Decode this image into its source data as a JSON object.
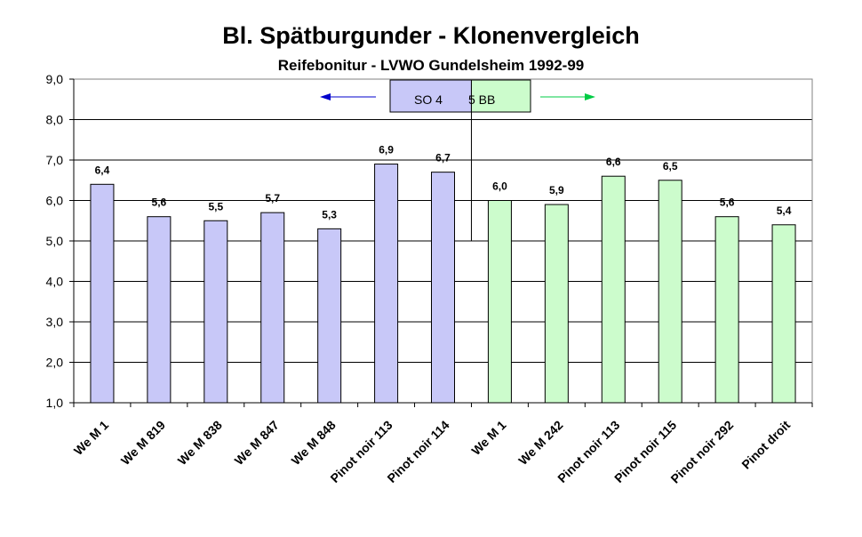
{
  "chart_data": {
    "type": "bar",
    "title": "Bl. Spätburgunder - Klonenvergleich",
    "subtitle": "Reifebonitur - LVWO Gundelsheim 1992-99",
    "ylim": [
      1.0,
      9.0
    ],
    "yticks": [
      "1,0",
      "2,0",
      "3,0",
      "4,0",
      "5,0",
      "6,0",
      "7,0",
      "8,0",
      "9,0"
    ],
    "grid": true,
    "series": [
      {
        "name": "SO 4",
        "color": "#c8c8f8",
        "categories": [
          "We M 1",
          "We M 819",
          "We M 838",
          "We M 847",
          "We M 848",
          "Pinot noir 113",
          "Pinot noir 114"
        ],
        "values": [
          6.4,
          5.6,
          5.5,
          5.7,
          5.3,
          6.9,
          6.7
        ],
        "labels": [
          "6,4",
          "5,6",
          "5,5",
          "5,7",
          "5,3",
          "6,9",
          "6,7"
        ]
      },
      {
        "name": "5 BB",
        "color": "#ccfccc",
        "categories": [
          "We M 1",
          "We M 242",
          "Pinot noir 113",
          "Pinot noir 115",
          "Pinot noir 292",
          "Pinot droit"
        ],
        "values": [
          6.0,
          5.9,
          6.6,
          6.5,
          5.6,
          5.4
        ],
        "labels": [
          "6,0",
          "5,9",
          "6,6",
          "6,5",
          "5,6",
          "5,4"
        ]
      }
    ],
    "legend": {
      "placement": "top-center",
      "left_arrow_color": "#0000cc",
      "right_arrow_color": "#00cc44"
    }
  }
}
